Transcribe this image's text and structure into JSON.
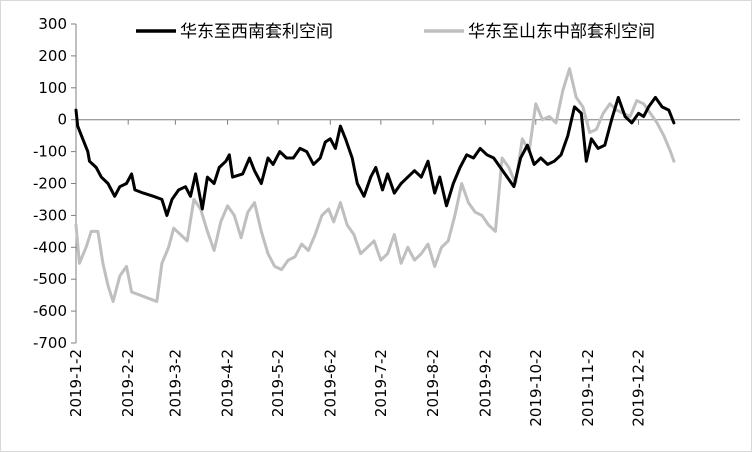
{
  "chart_data": {
    "type": "line",
    "title": "",
    "xlabel": "",
    "ylabel": "",
    "ylim": [
      -700,
      300
    ],
    "y_ticks": [
      300,
      200,
      100,
      0,
      -100,
      -200,
      -300,
      -400,
      -500,
      -600,
      -700
    ],
    "x_ticks": [
      "2019-1-2",
      "2019-2-2",
      "2019-3-2",
      "2019-4-2",
      "2019-5-2",
      "2019-6-2",
      "2019-7-2",
      "2019-8-2",
      "2019-9-2",
      "2019-10-2",
      "2019-11-2",
      "2019-12-2"
    ],
    "legend_position": "top",
    "grid": false,
    "series": [
      {
        "name": "华东至西南套利空间",
        "color": "#000000",
        "points": [
          [
            "2019-1-2",
            30
          ],
          [
            "2019-1-3",
            -20
          ],
          [
            "2019-1-6",
            -60
          ],
          [
            "2019-1-9",
            -100
          ],
          [
            "2019-1-10",
            -130
          ],
          [
            "2019-1-14",
            -150
          ],
          [
            "2019-1-17",
            -180
          ],
          [
            "2019-1-21",
            -200
          ],
          [
            "2019-1-25",
            -240
          ],
          [
            "2019-1-28",
            -210
          ],
          [
            "2019-2-1",
            -200
          ],
          [
            "2019-2-4",
            -170
          ],
          [
            "2019-2-6",
            -220
          ],
          [
            "2019-2-11",
            -230
          ],
          [
            "2019-2-17",
            -240
          ],
          [
            "2019-2-22",
            -250
          ],
          [
            "2019-2-25",
            -300
          ],
          [
            "2019-2-28",
            -250
          ],
          [
            "2019-3-4",
            -220
          ],
          [
            "2019-3-8",
            -210
          ],
          [
            "2019-3-11",
            -240
          ],
          [
            "2019-3-14",
            -170
          ],
          [
            "2019-3-18",
            -280
          ],
          [
            "2019-3-21",
            -180
          ],
          [
            "2019-3-25",
            -200
          ],
          [
            "2019-3-28",
            -150
          ],
          [
            "2019-4-1",
            -130
          ],
          [
            "2019-4-3",
            -110
          ],
          [
            "2019-4-5",
            -180
          ],
          [
            "2019-4-11",
            -170
          ],
          [
            "2019-4-15",
            -120
          ],
          [
            "2019-4-18",
            -160
          ],
          [
            "2019-4-22",
            -200
          ],
          [
            "2019-4-26",
            -120
          ],
          [
            "2019-4-29",
            -140
          ],
          [
            "2019-5-3",
            -100
          ],
          [
            "2019-5-7",
            -120
          ],
          [
            "2019-5-11",
            -120
          ],
          [
            "2019-5-15",
            -90
          ],
          [
            "2019-5-19",
            -100
          ],
          [
            "2019-5-23",
            -140
          ],
          [
            "2019-5-27",
            -120
          ],
          [
            "2019-5-30",
            -70
          ],
          [
            "2019-6-2",
            -60
          ],
          [
            "2019-6-5",
            -90
          ],
          [
            "2019-6-8",
            -20
          ],
          [
            "2019-6-11",
            -60
          ],
          [
            "2019-6-15",
            -120
          ],
          [
            "2019-6-18",
            -200
          ],
          [
            "2019-6-22",
            -240
          ],
          [
            "2019-6-26",
            -180
          ],
          [
            "2019-6-29",
            -150
          ],
          [
            "2019-7-3",
            -220
          ],
          [
            "2019-7-6",
            -170
          ],
          [
            "2019-7-10",
            -230
          ],
          [
            "2019-7-14",
            -200
          ],
          [
            "2019-7-18",
            -180
          ],
          [
            "2019-7-22",
            -160
          ],
          [
            "2019-7-26",
            -180
          ],
          [
            "2019-7-30",
            -130
          ],
          [
            "2019-8-3",
            -230
          ],
          [
            "2019-8-6",
            -180
          ],
          [
            "2019-8-10",
            -270
          ],
          [
            "2019-8-14",
            -200
          ],
          [
            "2019-8-18",
            -150
          ],
          [
            "2019-8-22",
            -110
          ],
          [
            "2019-8-26",
            -120
          ],
          [
            "2019-8-30",
            -90
          ],
          [
            "2019-9-3",
            -110
          ],
          [
            "2019-9-7",
            -120
          ],
          [
            "2019-9-11",
            -150
          ],
          [
            "2019-9-15",
            -180
          ],
          [
            "2019-9-19",
            -210
          ],
          [
            "2019-9-23",
            -120
          ],
          [
            "2019-9-27",
            -80
          ],
          [
            "2019-10-1",
            -140
          ],
          [
            "2019-10-5",
            -120
          ],
          [
            "2019-10-9",
            -140
          ],
          [
            "2019-10-13",
            -130
          ],
          [
            "2019-10-17",
            -110
          ],
          [
            "2019-10-21",
            -50
          ],
          [
            "2019-10-25",
            40
          ],
          [
            "2019-10-29",
            20
          ],
          [
            "2019-11-1",
            -130
          ],
          [
            "2019-11-4",
            -60
          ],
          [
            "2019-11-8",
            -90
          ],
          [
            "2019-11-12",
            -80
          ],
          [
            "2019-11-16",
            0
          ],
          [
            "2019-11-20",
            70
          ],
          [
            "2019-11-24",
            10
          ],
          [
            "2019-11-28",
            -10
          ],
          [
            "2019-12-2",
            20
          ],
          [
            "2019-12-5",
            10
          ],
          [
            "2019-12-8",
            40
          ],
          [
            "2019-12-12",
            70
          ],
          [
            "2019-12-16",
            40
          ],
          [
            "2019-12-20",
            30
          ],
          [
            "2019-12-23",
            -10
          ]
        ]
      },
      {
        "name": "华东至山东中部套利空间",
        "color": "#bfbfbf",
        "points": [
          [
            "2019-1-2",
            -330
          ],
          [
            "2019-1-4",
            -450
          ],
          [
            "2019-1-8",
            -400
          ],
          [
            "2019-1-11",
            -350
          ],
          [
            "2019-1-15",
            -350
          ],
          [
            "2019-1-18",
            -450
          ],
          [
            "2019-1-21",
            -520
          ],
          [
            "2019-1-24",
            -570
          ],
          [
            "2019-1-28",
            -490
          ],
          [
            "2019-2-1",
            -460
          ],
          [
            "2019-2-4",
            -540
          ],
          [
            "2019-2-9",
            -550
          ],
          [
            "2019-2-14",
            -560
          ],
          [
            "2019-2-19",
            -570
          ],
          [
            "2019-2-22",
            -450
          ],
          [
            "2019-2-26",
            -400
          ],
          [
            "2019-3-1",
            -340
          ],
          [
            "2019-3-5",
            -360
          ],
          [
            "2019-3-9",
            -380
          ],
          [
            "2019-3-13",
            -250
          ],
          [
            "2019-3-17",
            -280
          ],
          [
            "2019-3-21",
            -350
          ],
          [
            "2019-3-25",
            -410
          ],
          [
            "2019-3-29",
            -320
          ],
          [
            "2019-4-2",
            -270
          ],
          [
            "2019-4-6",
            -300
          ],
          [
            "2019-4-10",
            -370
          ],
          [
            "2019-4-14",
            -290
          ],
          [
            "2019-4-18",
            -260
          ],
          [
            "2019-4-22",
            -350
          ],
          [
            "2019-4-26",
            -420
          ],
          [
            "2019-4-30",
            -460
          ],
          [
            "2019-5-4",
            -470
          ],
          [
            "2019-5-8",
            -440
          ],
          [
            "2019-5-12",
            -430
          ],
          [
            "2019-5-16",
            -390
          ],
          [
            "2019-5-20",
            -410
          ],
          [
            "2019-5-24",
            -360
          ],
          [
            "2019-5-28",
            -300
          ],
          [
            "2019-6-1",
            -280
          ],
          [
            "2019-6-4",
            -320
          ],
          [
            "2019-6-8",
            -260
          ],
          [
            "2019-6-12",
            -330
          ],
          [
            "2019-6-16",
            -360
          ],
          [
            "2019-6-20",
            -420
          ],
          [
            "2019-6-24",
            -400
          ],
          [
            "2019-6-28",
            -380
          ],
          [
            "2019-7-2",
            -440
          ],
          [
            "2019-7-6",
            -420
          ],
          [
            "2019-7-10",
            -360
          ],
          [
            "2019-7-14",
            -450
          ],
          [
            "2019-7-18",
            -400
          ],
          [
            "2019-7-22",
            -440
          ],
          [
            "2019-7-26",
            -420
          ],
          [
            "2019-7-30",
            -390
          ],
          [
            "2019-8-3",
            -460
          ],
          [
            "2019-8-7",
            -400
          ],
          [
            "2019-8-11",
            -380
          ],
          [
            "2019-8-15",
            -300
          ],
          [
            "2019-8-19",
            -200
          ],
          [
            "2019-8-23",
            -260
          ],
          [
            "2019-8-27",
            -290
          ],
          [
            "2019-8-31",
            -300
          ],
          [
            "2019-9-4",
            -330
          ],
          [
            "2019-9-8",
            -350
          ],
          [
            "2019-9-12",
            -120
          ],
          [
            "2019-9-16",
            -150
          ],
          [
            "2019-9-20",
            -200
          ],
          [
            "2019-9-24",
            -60
          ],
          [
            "2019-9-28",
            -100
          ],
          [
            "2019-10-2",
            50
          ],
          [
            "2019-10-6",
            0
          ],
          [
            "2019-10-10",
            10
          ],
          [
            "2019-10-14",
            -10
          ],
          [
            "2019-10-18",
            90
          ],
          [
            "2019-10-22",
            160
          ],
          [
            "2019-10-26",
            70
          ],
          [
            "2019-10-30",
            40
          ],
          [
            "2019-11-3",
            -40
          ],
          [
            "2019-11-7",
            -30
          ],
          [
            "2019-11-11",
            20
          ],
          [
            "2019-11-15",
            50
          ],
          [
            "2019-11-19",
            30
          ],
          [
            "2019-11-23",
            20
          ],
          [
            "2019-11-27",
            10
          ],
          [
            "2019-12-1",
            60
          ],
          [
            "2019-12-5",
            50
          ],
          [
            "2019-12-9",
            20
          ],
          [
            "2019-12-13",
            -10
          ],
          [
            "2019-12-17",
            -50
          ],
          [
            "2019-12-21",
            -100
          ],
          [
            "2019-12-23",
            -130
          ]
        ]
      }
    ]
  }
}
